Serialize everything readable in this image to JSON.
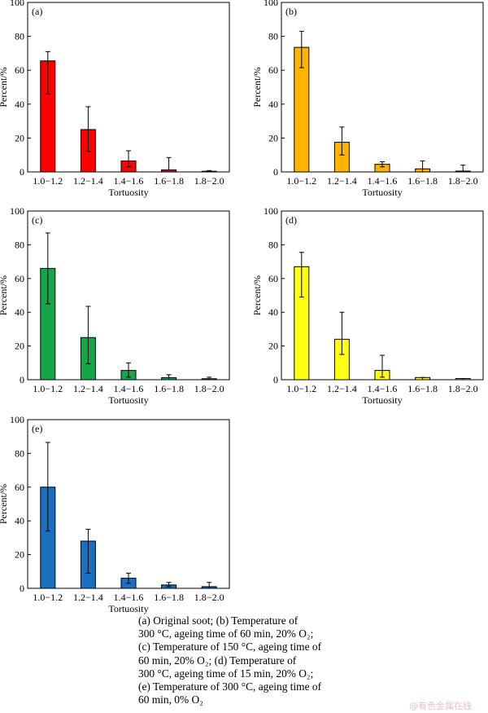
{
  "chart_data": [
    {
      "type": "bar",
      "panel_label": "(a)",
      "color": "#ff0000",
      "categories": [
        "1.0−1.2",
        "1.2−1.4",
        "1.4−1.6",
        "1.6−1.8",
        "1.8−2.0"
      ],
      "values": [
        65.5,
        25,
        6.5,
        1.2,
        0.4
      ],
      "error_low": [
        46,
        12,
        3,
        0,
        0
      ],
      "error_high": [
        71,
        38.5,
        12.5,
        8.5,
        0.8
      ],
      "xlabel": "Tortuosity",
      "ylabel": "Percent/%",
      "ylim": [
        0,
        100
      ],
      "yticks": [
        0,
        20,
        40,
        60,
        80,
        100
      ],
      "grid": false
    },
    {
      "type": "bar",
      "panel_label": "(b)",
      "color": "#ffb400",
      "categories": [
        "1.0−1.2",
        "1.2−1.4",
        "1.4−1.6",
        "1.6−1.8",
        "1.8−2.0"
      ],
      "values": [
        73.5,
        17.5,
        4.5,
        1.8,
        0.5
      ],
      "error_low": [
        61.5,
        10,
        3,
        0,
        0
      ],
      "error_high": [
        83,
        26.5,
        6,
        6.5,
        4
      ],
      "xlabel": "Tortuosity",
      "ylabel": "Percent/%",
      "ylim": [
        0,
        100
      ],
      "yticks": [
        0,
        20,
        40,
        60,
        80,
        100
      ],
      "grid": false
    },
    {
      "type": "bar",
      "panel_label": "(c)",
      "color": "#14a647",
      "categories": [
        "1.0−1.2",
        "1.2−1.4",
        "1.4−1.6",
        "1.6−1.8",
        "1.8−2.0"
      ],
      "values": [
        66,
        25,
        5.5,
        1.2,
        0.6
      ],
      "error_low": [
        45,
        9.5,
        1.5,
        0,
        0
      ],
      "error_high": [
        87,
        43.5,
        10,
        3,
        1.5
      ],
      "xlabel": "Tortuosity",
      "ylabel": "Percent/%",
      "ylim": [
        0,
        100
      ],
      "yticks": [
        0,
        20,
        40,
        60,
        80,
        100
      ],
      "grid": false
    },
    {
      "type": "bar",
      "panel_label": "(d)",
      "color": "#ffff14",
      "categories": [
        "1.0−1.2",
        "1.2−1.4",
        "1.4−1.6",
        "1.6−1.8",
        "1.8−2.0"
      ],
      "values": [
        67,
        24,
        5.5,
        1.3,
        0.7
      ],
      "error_low": [
        49,
        15,
        1.5,
        0,
        0
      ],
      "error_high": [
        75.5,
        40,
        14.5,
        1.3,
        0.7
      ],
      "xlabel": "Tortuosity",
      "ylabel": "Percent/%",
      "ylim": [
        0,
        100
      ],
      "yticks": [
        0,
        20,
        40,
        60,
        80,
        100
      ],
      "grid": false
    },
    {
      "type": "bar",
      "panel_label": "(e)",
      "color": "#1a6fbf",
      "categories": [
        "1.0−1.2",
        "1.2−1.4",
        "1.4−1.6",
        "1.6−1.8",
        "1.8−2.0"
      ],
      "values": [
        60,
        28,
        6,
        2,
        1
      ],
      "error_low": [
        34,
        9,
        3,
        1,
        0
      ],
      "error_high": [
        86.5,
        35,
        9,
        3.5,
        3.5
      ],
      "xlabel": "Tortuosity",
      "ylabel": "Percent/%",
      "ylim": [
        0,
        100
      ],
      "yticks": [
        0,
        20,
        40,
        60,
        80,
        100
      ],
      "grid": false
    }
  ],
  "caption": [
    "(a) Original soot; (b) Temperature of",
    "300 °C, ageing time of 60 min, 20% O₂;",
    "(c) Temperature of 150 °C, ageing time of",
    "60 min, 20% O₂; (d) Temperature of",
    "300 °C, ageing time of 15 min, 20% O₂;",
    "(e) Temperature of 300 °C, ageing time of",
    "60 min, 0% O₂"
  ],
  "watermark": "@有色金属在线"
}
